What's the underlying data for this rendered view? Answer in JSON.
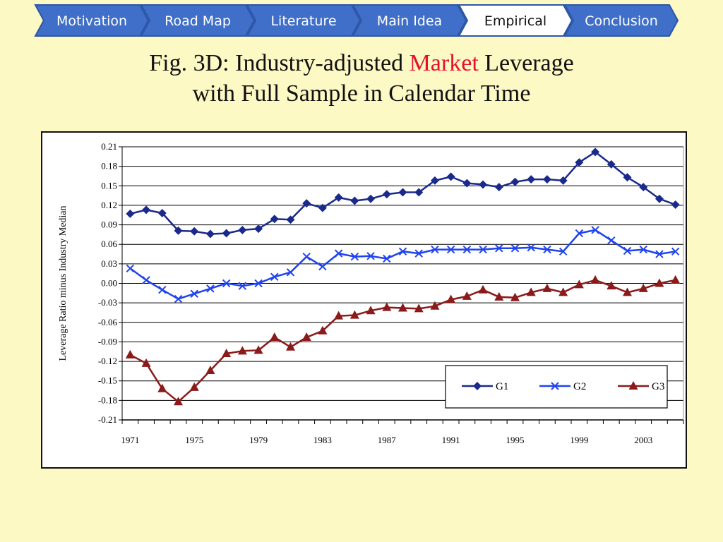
{
  "nav": {
    "items": [
      {
        "label": "Motivation",
        "active": false
      },
      {
        "label": "Road Map",
        "active": false
      },
      {
        "label": "Literature",
        "active": false
      },
      {
        "label": "Main Idea",
        "active": false
      },
      {
        "label": "Empirical",
        "active": true
      },
      {
        "label": "Conclusion",
        "active": false
      }
    ],
    "colors": {
      "inactive": "#3f6fc8",
      "active": "#ffffff",
      "border": "#2d56a8"
    }
  },
  "title": {
    "prefix": "Fig. 3D: Industry-adjusted ",
    "highlight": "Market",
    "suffix": " Leverage",
    "line2": "with Full Sample in Calendar Time",
    "highlight_color": "#e8112d"
  },
  "chart_data": {
    "type": "line",
    "title": "",
    "xlabel": "",
    "ylabel": "Leverage Ratio minus Industry Median",
    "ylim": [
      -0.21,
      0.21
    ],
    "y_ticks": [
      "0.21",
      "0.18",
      "0.15",
      "0.12",
      "0.09",
      "0.06",
      "0.03",
      "0.00",
      "-0.03",
      "-0.06",
      "-0.09",
      "-0.12",
      "-0.15",
      "-0.18",
      "-0.21"
    ],
    "x_tick_labels": [
      "1971",
      "1975",
      "1979",
      "1983",
      "1987",
      "1991",
      "1995",
      "1999",
      "2003"
    ],
    "grid": true,
    "legend_position": "bottom-right",
    "x": [
      1971,
      1972,
      1973,
      1974,
      1975,
      1976,
      1977,
      1978,
      1979,
      1980,
      1981,
      1982,
      1983,
      1984,
      1985,
      1986,
      1987,
      1988,
      1989,
      1990,
      1991,
      1992,
      1993,
      1994,
      1995,
      1996,
      1997,
      1998,
      1999,
      2000,
      2001,
      2002,
      2003,
      2004,
      2005
    ],
    "series": [
      {
        "name": "G1",
        "color": "#1a2a8c",
        "marker": "diamond",
        "values": [
          0.107,
          0.113,
          0.108,
          0.081,
          0.08,
          0.076,
          0.077,
          0.082,
          0.084,
          0.099,
          0.098,
          0.123,
          0.116,
          0.132,
          0.127,
          0.13,
          0.137,
          0.14,
          0.14,
          0.158,
          0.164,
          0.154,
          0.152,
          0.148,
          0.156,
          0.16,
          0.16,
          0.158,
          0.186,
          0.202,
          0.183,
          0.163,
          0.148,
          0.13,
          0.121
        ]
      },
      {
        "name": "G2",
        "color": "#1f43f0",
        "marker": "x",
        "values": [
          0.023,
          0.005,
          -0.01,
          -0.024,
          -0.016,
          -0.008,
          0.0,
          -0.004,
          0.0,
          0.01,
          0.017,
          0.041,
          0.026,
          0.046,
          0.041,
          0.042,
          0.038,
          0.049,
          0.046,
          0.052,
          0.052,
          0.052,
          0.052,
          0.054,
          0.054,
          0.055,
          0.052,
          0.049,
          0.077,
          0.082,
          0.066,
          0.05,
          0.052,
          0.045,
          0.049
        ]
      },
      {
        "name": "G3",
        "color": "#8b1a1a",
        "marker": "triangle",
        "values": [
          -0.11,
          -0.123,
          -0.162,
          -0.182,
          -0.16,
          -0.134,
          -0.108,
          -0.104,
          -0.103,
          -0.083,
          -0.098,
          -0.083,
          -0.073,
          -0.05,
          -0.049,
          -0.042,
          -0.037,
          -0.038,
          -0.039,
          -0.035,
          -0.025,
          -0.02,
          -0.01,
          -0.021,
          -0.022,
          -0.014,
          -0.008,
          -0.014,
          -0.002,
          0.005,
          -0.004,
          -0.014,
          -0.008,
          0.0,
          0.005
        ]
      }
    ]
  }
}
